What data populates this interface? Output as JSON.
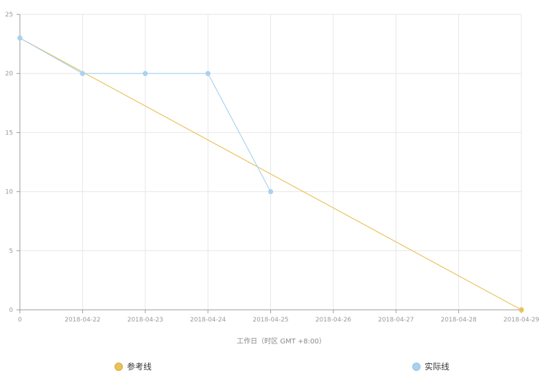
{
  "chart_data": {
    "type": "line",
    "x": [
      "0",
      "2018-04-22",
      "2018-04-23",
      "2018-04-24",
      "2018-04-25",
      "2018-04-26",
      "2018-04-27",
      "2018-04-28",
      "2018-04-29"
    ],
    "xlabel": "工作日（时区 GMT +8:00）",
    "ylabel": "",
    "ylim": [
      0,
      25
    ],
    "yticks": [
      0,
      5,
      10,
      15,
      20,
      25
    ],
    "grid": true,
    "legend_position": "bottom",
    "series": [
      {
        "name": "参考线",
        "color": "#e8c25c",
        "points": [
          [
            0,
            23
          ],
          [
            8,
            0
          ]
        ]
      },
      {
        "name": "实际线",
        "color": "#a8d2f0",
        "points": [
          [
            0,
            23
          ],
          [
            1,
            20
          ],
          [
            2,
            20
          ],
          [
            3,
            20
          ],
          [
            4,
            10
          ]
        ]
      }
    ]
  }
}
